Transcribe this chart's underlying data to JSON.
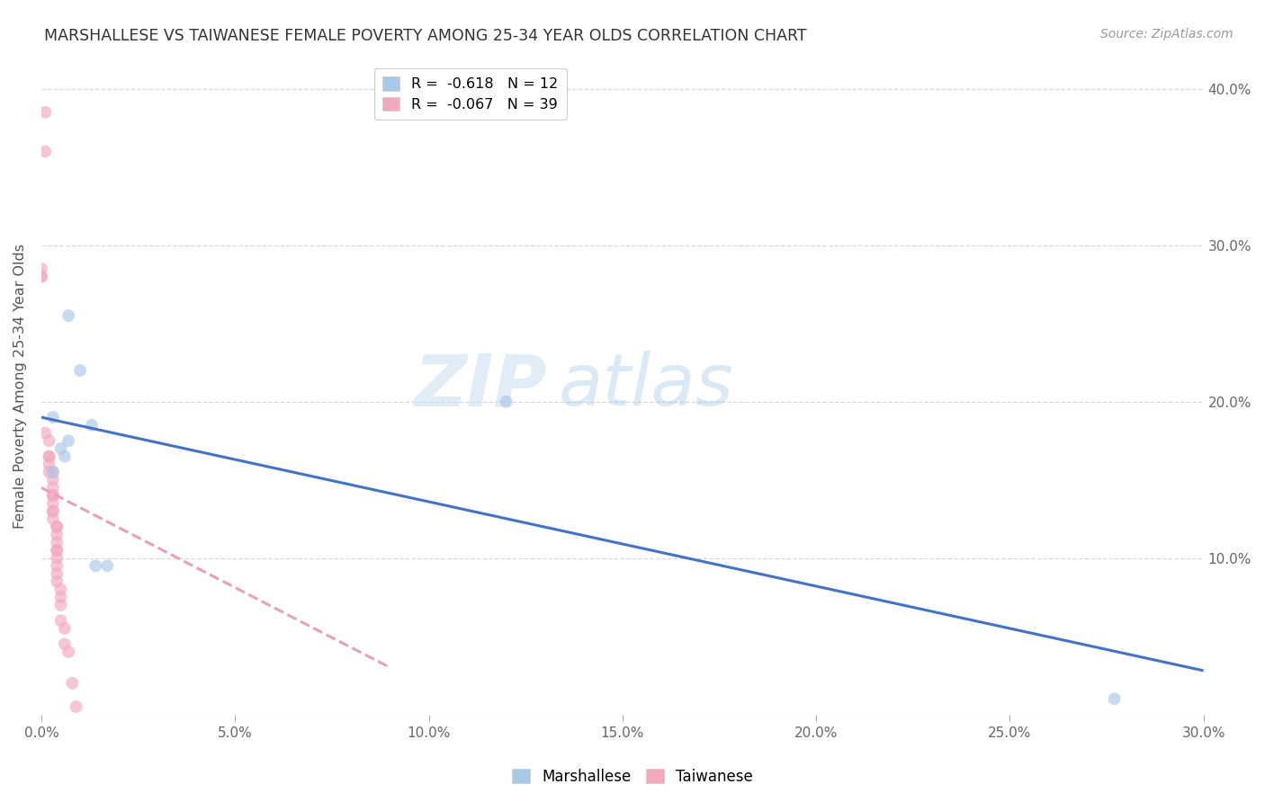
{
  "title": "MARSHALLESE VS TAIWANESE FEMALE POVERTY AMONG 25-34 YEAR OLDS CORRELATION CHART",
  "source": "Source: ZipAtlas.com",
  "ylabel": "Female Poverty Among 25-34 Year Olds",
  "xlim": [
    0.0,
    0.3
  ],
  "ylim": [
    0.0,
    0.42
  ],
  "xticks": [
    0.0,
    0.05,
    0.1,
    0.15,
    0.2,
    0.25,
    0.3
  ],
  "yticks": [
    0.0,
    0.1,
    0.2,
    0.3,
    0.4
  ],
  "x_tick_labels": [
    "0.0%",
    "5.0%",
    "10.0%",
    "15.0%",
    "20.0%",
    "25.0%",
    "30.0%"
  ],
  "y_tick_labels_left": [
    "",
    "",
    "",
    "",
    ""
  ],
  "y_tick_labels_right": [
    "",
    "10.0%",
    "20.0%",
    "30.0%",
    "40.0%"
  ],
  "legend_line1": "R =  -0.618   N = 12",
  "legend_line2": "R =  -0.067   N = 39",
  "marshallese_x": [
    0.003,
    0.003,
    0.007,
    0.01,
    0.005,
    0.006,
    0.007,
    0.013,
    0.014,
    0.017,
    0.12,
    0.277
  ],
  "marshallese_y": [
    0.19,
    0.155,
    0.255,
    0.22,
    0.17,
    0.165,
    0.175,
    0.185,
    0.095,
    0.095,
    0.2,
    0.01
  ],
  "taiwanese_x": [
    0.001,
    0.001,
    0.0,
    0.0,
    0.0,
    0.001,
    0.002,
    0.002,
    0.002,
    0.002,
    0.002,
    0.003,
    0.003,
    0.003,
    0.003,
    0.003,
    0.003,
    0.003,
    0.003,
    0.003,
    0.004,
    0.004,
    0.004,
    0.004,
    0.004,
    0.004,
    0.004,
    0.004,
    0.004,
    0.004,
    0.005,
    0.005,
    0.005,
    0.005,
    0.006,
    0.006,
    0.007,
    0.008,
    0.009
  ],
  "taiwanese_y": [
    0.385,
    0.36,
    0.285,
    0.28,
    0.28,
    0.18,
    0.175,
    0.165,
    0.165,
    0.16,
    0.155,
    0.155,
    0.15,
    0.145,
    0.14,
    0.14,
    0.135,
    0.13,
    0.13,
    0.125,
    0.12,
    0.12,
    0.115,
    0.11,
    0.105,
    0.105,
    0.1,
    0.095,
    0.09,
    0.085,
    0.08,
    0.075,
    0.07,
    0.06,
    0.055,
    0.045,
    0.04,
    0.02,
    0.005
  ],
  "marshallese_color": "#a8c8e8",
  "taiwanese_color": "#f4a8bf",
  "marshallese_line_color": "#4472c4",
  "taiwanese_line_color": "#e8a0b8",
  "marshallese_line_x": [
    0.0,
    0.3
  ],
  "marshallese_line_y": [
    0.19,
    0.028
  ],
  "taiwanese_line_x": [
    0.0,
    0.09
  ],
  "taiwanese_line_y": [
    0.145,
    0.03
  ],
  "watermark_zip": "ZIP",
  "watermark_atlas": "atlas",
  "background_color": "#ffffff",
  "grid_color": "#d8d8d8",
  "marker_size": 100,
  "marker_alpha": 0.65,
  "line_width": 2.2
}
